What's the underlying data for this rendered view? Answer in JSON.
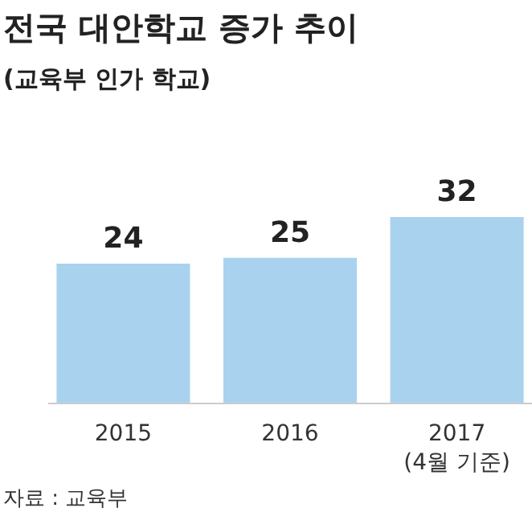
{
  "chart_data": {
    "type": "bar",
    "title": "전국 대안학교 증가 추이",
    "subtitle": "(교육부 인가 학교)",
    "categories": [
      "2015",
      "2016",
      "2017\n(4월 기준)"
    ],
    "values": [
      24,
      25,
      32
    ],
    "color": "#a9d2ef",
    "data_labels": true,
    "annotations": [
      "자료 : 교육부"
    ]
  }
}
